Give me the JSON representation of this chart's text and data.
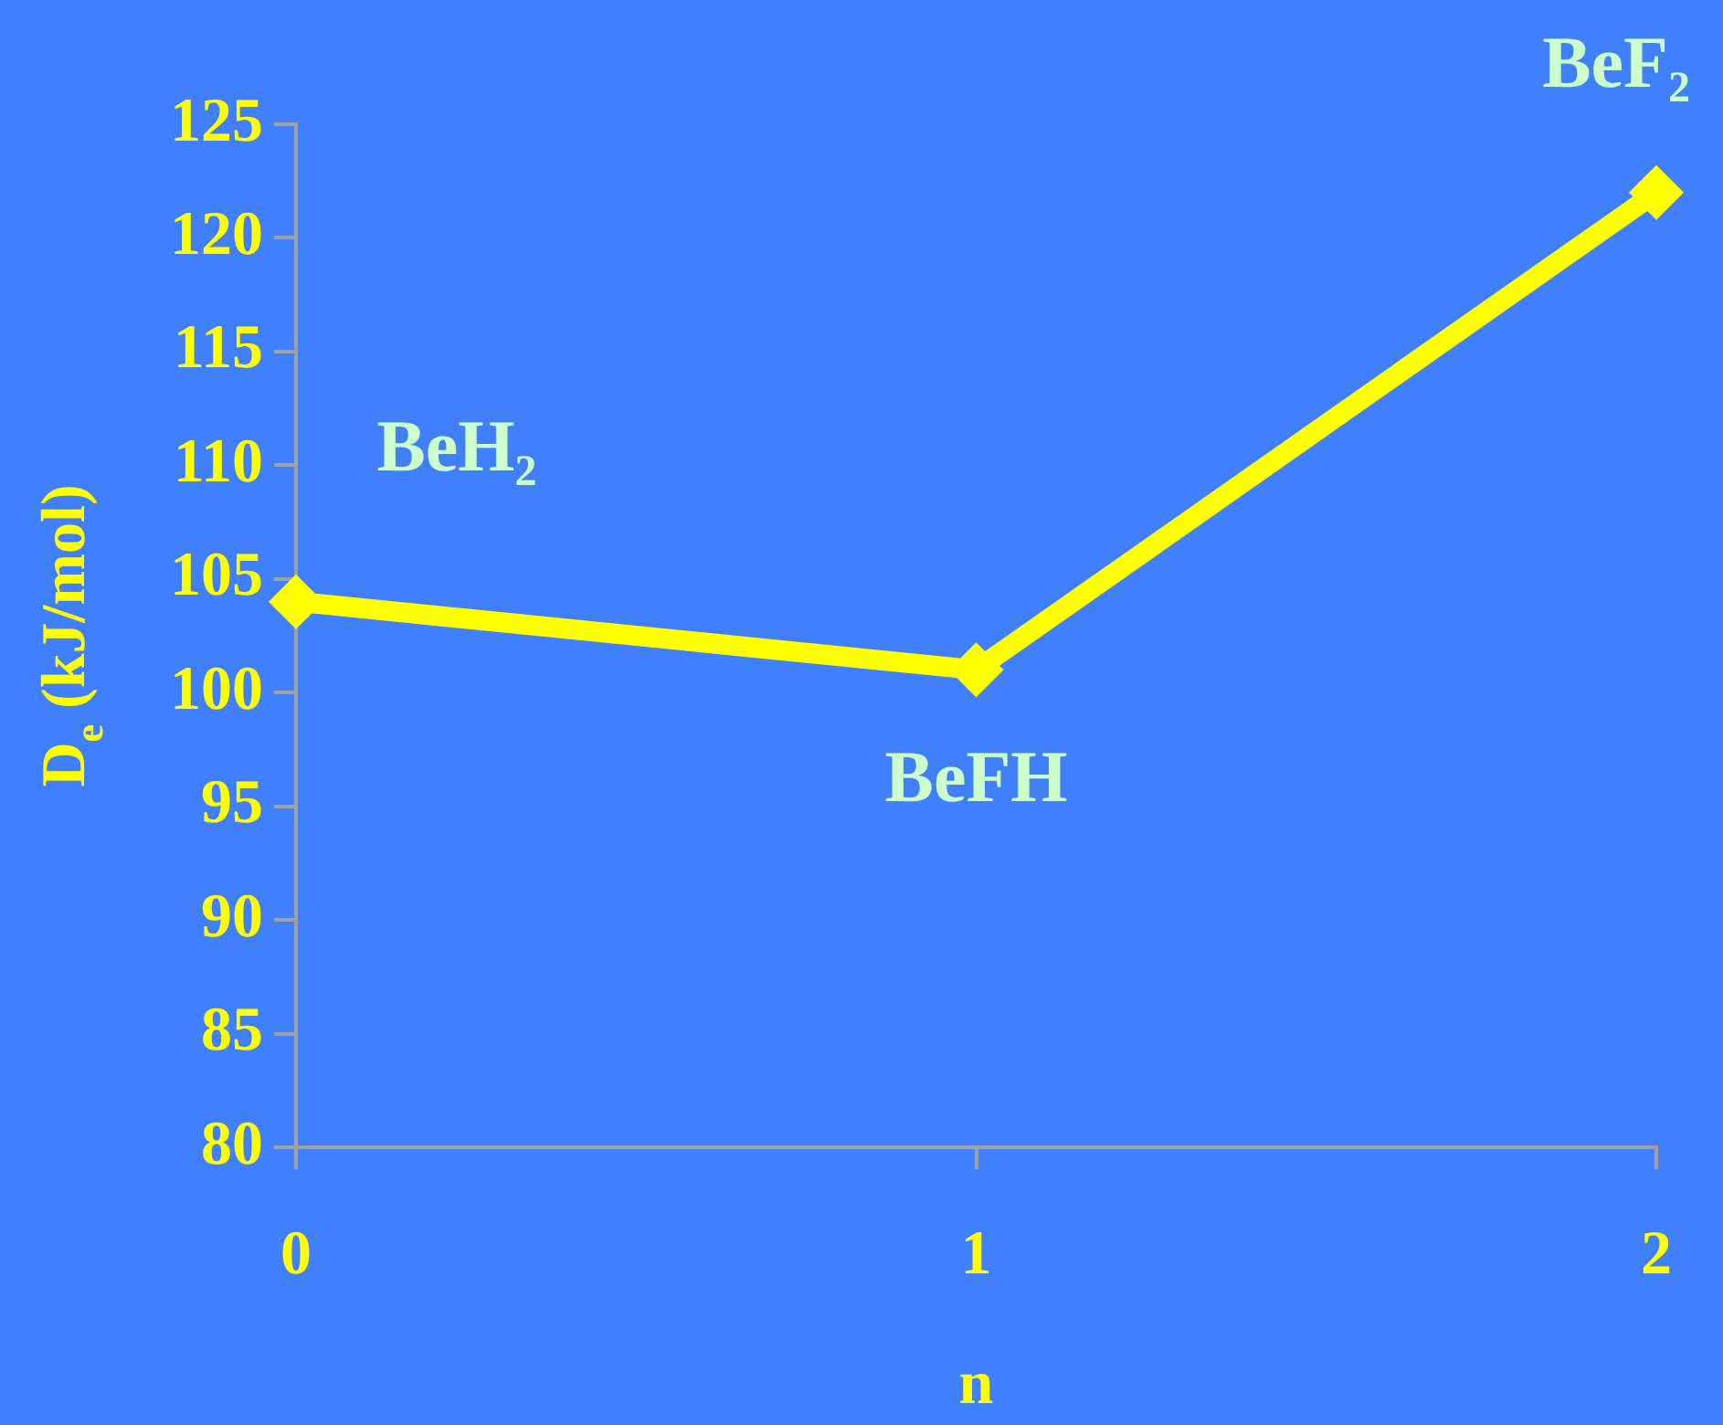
{
  "chart_data": {
    "type": "line",
    "ylabel": "D$_{e}$ (kJ/mol)",
    "xlabel": "n",
    "x": [
      0,
      1,
      2
    ],
    "series": [
      {
        "color": "#ffff00",
        "values": [
          104,
          101,
          122
        ]
      }
    ],
    "xlim": [
      0,
      2
    ],
    "xticks": [
      0,
      1,
      2
    ],
    "ylim": [
      80,
      125
    ],
    "yticks": [
      80,
      85,
      90,
      95,
      100,
      105,
      110,
      115,
      120,
      125
    ],
    "marker": "diamond",
    "line_style": "solid",
    "grid": false,
    "legend": false,
    "annotations": [
      {
        "text": "BeH₂",
        "x": 0,
        "y": 104
      },
      {
        "text": "BeFH",
        "x": 1,
        "y": 101
      },
      {
        "text": "BeF₂",
        "x": 2,
        "y": 122
      }
    ]
  }
}
